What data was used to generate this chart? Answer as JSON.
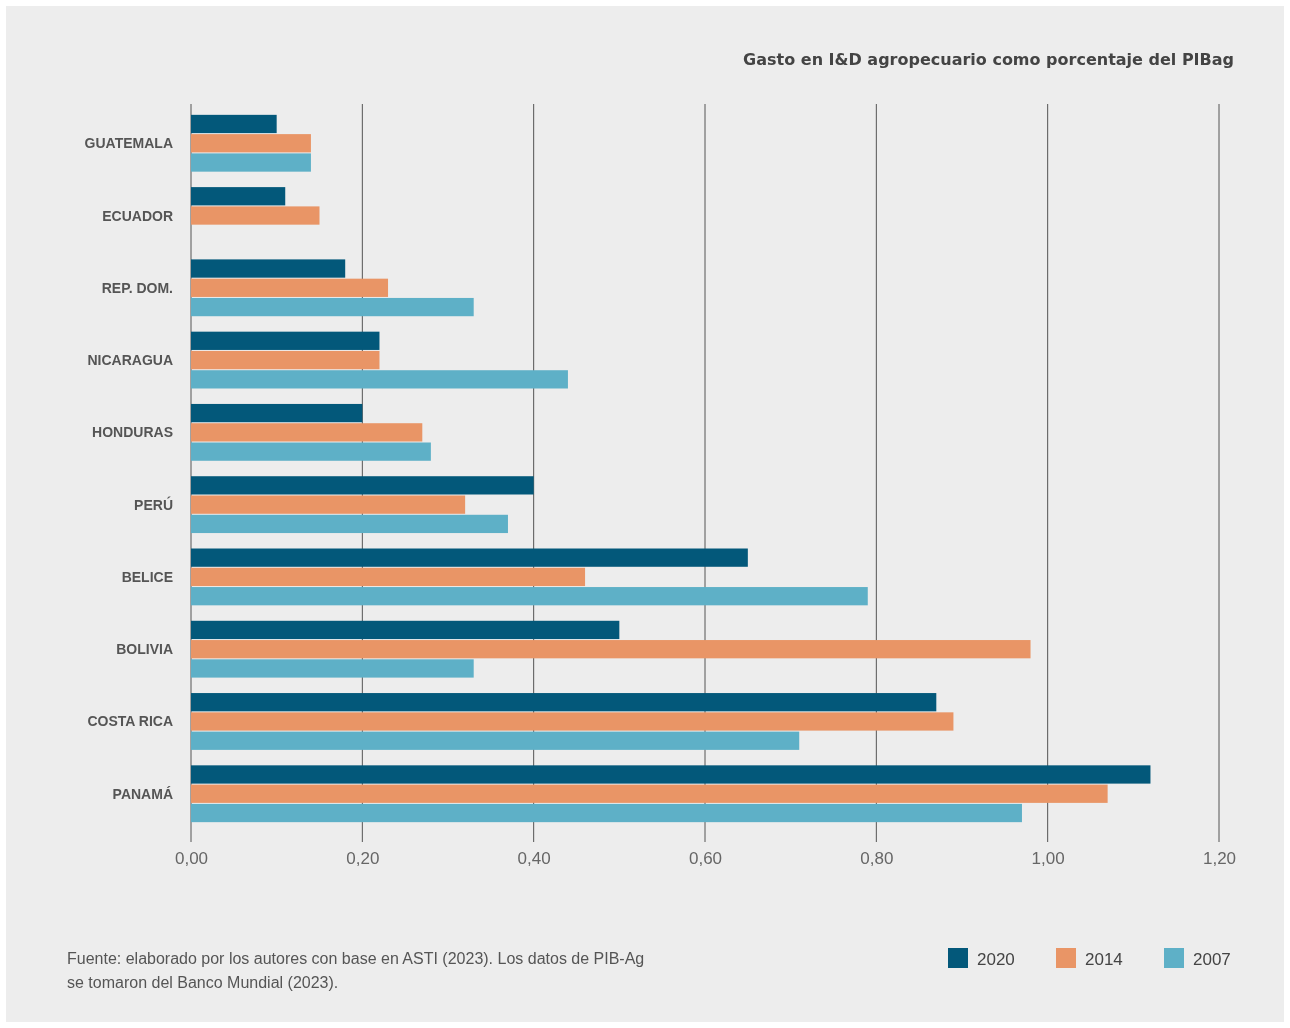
{
  "chart_data": {
    "type": "bar",
    "orientation": "horizontal",
    "title": "Gasto en I&D agropecuario como porcentaje del PIBag",
    "categories": [
      "GUATEMALA",
      "ECUADOR",
      "REP. DOM.",
      "NICARAGUA",
      "HONDURAS",
      "PERÚ",
      "BELICE",
      "BOLIVIA",
      "COSTA RICA",
      "PANAMÁ"
    ],
    "series": [
      {
        "name": "2020",
        "color": "#03587a",
        "values": [
          0.1,
          0.11,
          0.18,
          0.22,
          0.2,
          0.4,
          0.65,
          0.5,
          0.87,
          1.12
        ]
      },
      {
        "name": "2014",
        "color": "#e99566",
        "values": [
          0.14,
          0.15,
          0.23,
          0.22,
          0.27,
          0.32,
          0.46,
          0.98,
          0.89,
          1.07
        ]
      },
      {
        "name": "2007",
        "color": "#5eb0c7",
        "values": [
          0.14,
          null,
          0.33,
          0.44,
          0.28,
          0.37,
          0.79,
          0.33,
          0.71,
          0.97
        ]
      }
    ],
    "xlim": [
      0,
      1.2
    ],
    "xticks": [
      {
        "value": 0,
        "label": "0,00"
      },
      {
        "value": 0.2,
        "label": "0,20"
      },
      {
        "value": 0.4,
        "label": "0,40"
      },
      {
        "value": 0.6,
        "label": "0,60"
      },
      {
        "value": 0.8,
        "label": "0,80"
      },
      {
        "value": 1.0,
        "label": "1,00"
      },
      {
        "value": 1.2,
        "label": "1,20"
      }
    ],
    "grid": "x",
    "legend": "bottom right",
    "annotations": [
      "Fuente: elaborado por los autores con base en ASTI (2023). Los datos de PIB-Ag se tomaron del Banco Mundial (2023)."
    ]
  }
}
